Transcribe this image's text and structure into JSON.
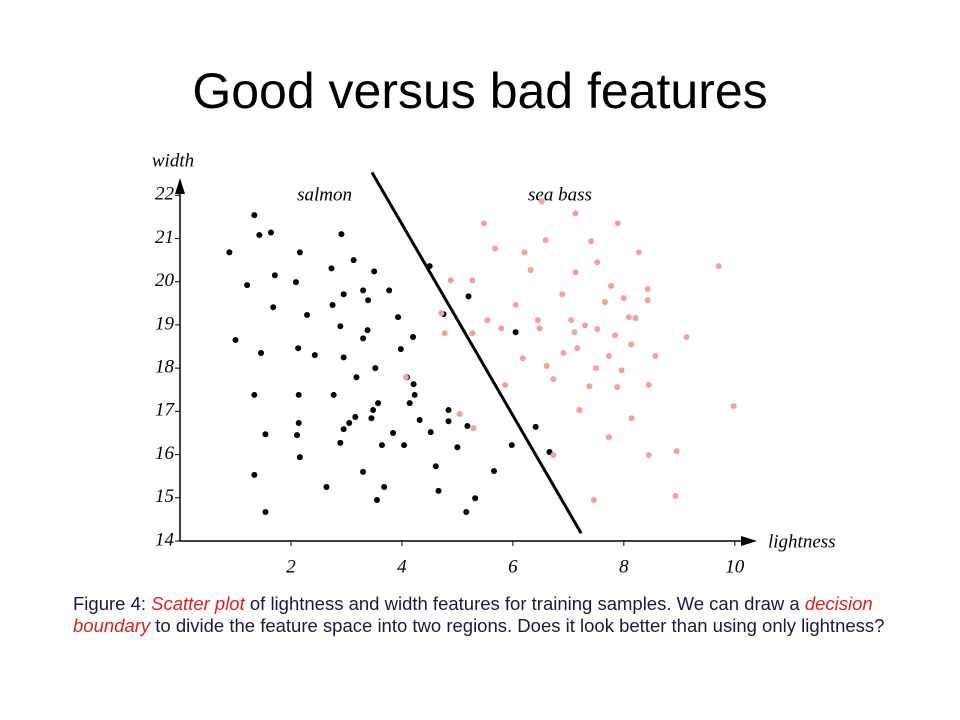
{
  "title": "Good versus bad features",
  "chart_data": {
    "type": "scatter",
    "x_label": "lightness",
    "y_label": "width",
    "xlim": [
      0,
      10.4
    ],
    "ylim": [
      14,
      22.4
    ],
    "xticks": [
      2,
      4,
      6,
      8,
      10
    ],
    "yticks": [
      14,
      15,
      16,
      17,
      18,
      19,
      20,
      21,
      22
    ],
    "grid": false,
    "series": [
      {
        "name": "salmon",
        "color": "#000000",
        "x": [
          1.34,
          1.43,
          1.64,
          0.89,
          2.16,
          2.91,
          3.13,
          3.5,
          2.73,
          4.5,
          1.71,
          1.21,
          2.09,
          2.95,
          3.3,
          3.77,
          1.68,
          2.29,
          2.75,
          3.39,
          3.93,
          4.75,
          5.2,
          6.05,
          1.0,
          2.89,
          3.38,
          3.3,
          4.2,
          1.46,
          2.13,
          2.43,
          2.95,
          3.98,
          3.52,
          3.18,
          4.09,
          4.21,
          1.34,
          2.14,
          2.77,
          4.23,
          4.14,
          3.57,
          3.48,
          3.16,
          3.45,
          4.84,
          2.14,
          3.05,
          2.95,
          4.32,
          4.84,
          5.18,
          2.11,
          1.54,
          3.84,
          4.52,
          6.41,
          2.89,
          3.64,
          4.04,
          5.0,
          5.98,
          6.66,
          2.16,
          4.61,
          1.34,
          3.3,
          5.66,
          2.64,
          3.68,
          4.66,
          3.55,
          5.32,
          1.54,
          5.16
        ],
        "values": [
          21.54,
          21.08,
          21.14,
          20.68,
          20.68,
          21.1,
          20.5,
          20.24,
          20.31,
          20.36,
          20.15,
          19.92,
          19.99,
          19.71,
          19.8,
          19.8,
          19.41,
          19.23,
          19.46,
          19.57,
          19.18,
          19.25,
          19.66,
          18.83,
          18.65,
          18.97,
          18.88,
          18.69,
          18.72,
          18.35,
          18.46,
          18.3,
          18.25,
          18.44,
          18.0,
          17.79,
          17.79,
          17.63,
          17.38,
          17.38,
          17.38,
          17.38,
          17.19,
          17.19,
          17.03,
          16.87,
          16.84,
          17.03,
          16.73,
          16.73,
          16.59,
          16.8,
          16.77,
          16.66,
          16.45,
          16.47,
          16.5,
          16.52,
          16.64,
          16.27,
          16.22,
          16.22,
          16.17,
          16.22,
          16.06,
          15.94,
          15.73,
          15.53,
          15.6,
          15.62,
          15.25,
          15.25,
          15.16,
          14.95,
          14.99,
          14.67,
          14.67
        ]
      },
      {
        "name": "sea bass",
        "color": "#f4a0a0",
        "x": [
          5.48,
          6.52,
          7.13,
          7.89,
          5.68,
          6.21,
          6.59,
          7.41,
          8.27,
          7.52,
          6.32,
          7.13,
          9.71,
          4.88,
          5.27,
          7.77,
          8.43,
          6.05,
          6.89,
          7.66,
          8.0,
          8.43,
          4.71,
          5.54,
          6.45,
          7.05,
          7.3,
          8.09,
          8.21,
          4.77,
          5.27,
          5.79,
          6.48,
          7.11,
          7.52,
          7.84,
          9.13,
          6.91,
          6.18,
          7.16,
          7.73,
          8.13,
          8.57,
          7.5,
          6.61,
          7.96,
          4.07,
          5.86,
          6.73,
          7.38,
          7.88,
          8.45,
          7.2,
          9.98,
          5.04,
          8.14,
          5.29,
          7.73,
          6.73,
          8.45,
          8.95,
          7.46,
          8.93
        ],
        "values": [
          21.35,
          21.86,
          21.58,
          21.35,
          20.77,
          20.68,
          20.96,
          20.94,
          20.68,
          20.45,
          20.27,
          20.22,
          20.36,
          20.03,
          20.03,
          19.9,
          19.83,
          19.46,
          19.71,
          19.53,
          19.62,
          19.57,
          19.27,
          19.11,
          19.11,
          19.11,
          18.99,
          19.18,
          19.16,
          18.81,
          18.81,
          18.92,
          18.92,
          18.83,
          18.9,
          18.76,
          18.72,
          18.35,
          18.23,
          18.46,
          18.28,
          18.55,
          18.28,
          18.0,
          18.05,
          17.95,
          17.79,
          17.61,
          17.75,
          17.58,
          17.56,
          17.61,
          17.03,
          17.12,
          16.94,
          16.84,
          16.61,
          16.4,
          15.99,
          15.99,
          16.08,
          14.95,
          15.04
        ]
      }
    ],
    "boundary": {
      "x": [
        3.46,
        7.23
      ],
      "y": [
        22.53,
        14.18
      ]
    }
  },
  "caption": [
    "Figure 4: ",
    "Scatter plot",
    " of lightness and width features for training samples. We can draw a ",
    "decision boundary",
    " to divide the feature space into two regions. Does it look better than using only lightness?"
  ]
}
